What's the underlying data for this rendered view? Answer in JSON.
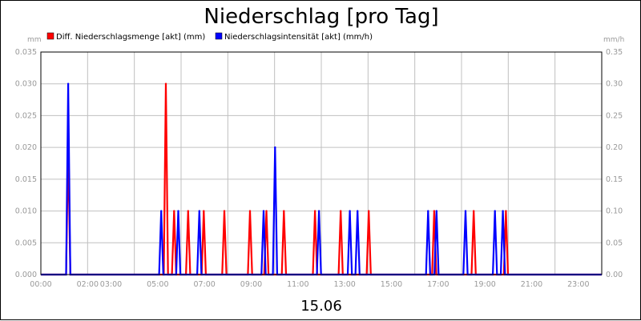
{
  "chart_data": {
    "type": "line",
    "title": "Niederschlag [pro Tag]",
    "xlabel": "15.06",
    "ylabel_left": "mm",
    "ylabel_right": "mm/h",
    "x_unit": "hours",
    "xlim": [
      0,
      24
    ],
    "ylim_left": [
      0,
      0.035
    ],
    "ylim_right": [
      0,
      0.35
    ],
    "yticks_left": [
      "0.000",
      "0.005",
      "0.010",
      "0.015",
      "0.020",
      "0.025",
      "0.030",
      "0.035"
    ],
    "yticks_right": [
      "0.00",
      "0.05",
      "0.10",
      "0.15",
      "0.20",
      "0.25",
      "0.30",
      "0.35"
    ],
    "xticks": [
      {
        "label": "00:00",
        "x": 0
      },
      {
        "label": "02:00",
        "x": 2
      },
      {
        "label": "03:00",
        "x": 3
      },
      {
        "label": "05:00",
        "x": 5
      },
      {
        "label": "07:00",
        "x": 7
      },
      {
        "label": "09:00",
        "x": 9
      },
      {
        "label": "11:00",
        "x": 11
      },
      {
        "label": "13:00",
        "x": 13
      },
      {
        "label": "15:00",
        "x": 15
      },
      {
        "label": "17:00",
        "x": 17
      },
      {
        "label": "19:00",
        "x": 19
      },
      {
        "label": "21:00",
        "x": 21
      },
      {
        "label": "23:00",
        "x": 23
      }
    ],
    "grid": true,
    "legend_position": "top-left",
    "series": [
      {
        "name": "Diff. Niederschlagsmenge [akt] (mm)",
        "color": "#ff0000",
        "axis": "left",
        "peaks": [
          {
            "x": 1.17,
            "y": 0.02
          },
          {
            "x": 5.35,
            "y": 0.03
          },
          {
            "x": 5.7,
            "y": 0.01
          },
          {
            "x": 6.3,
            "y": 0.01
          },
          {
            "x": 6.97,
            "y": 0.01
          },
          {
            "x": 7.85,
            "y": 0.01
          },
          {
            "x": 8.95,
            "y": 0.01
          },
          {
            "x": 9.65,
            "y": 0.01
          },
          {
            "x": 10.4,
            "y": 0.01
          },
          {
            "x": 11.73,
            "y": 0.01
          },
          {
            "x": 12.83,
            "y": 0.01
          },
          {
            "x": 14.03,
            "y": 0.01
          },
          {
            "x": 16.83,
            "y": 0.01
          },
          {
            "x": 18.52,
            "y": 0.01
          },
          {
            "x": 19.9,
            "y": 0.01
          }
        ]
      },
      {
        "name": "Niederschlagsintensität [akt] (mm/h)",
        "color": "#0000ff",
        "axis": "right",
        "peaks": [
          {
            "x": 1.17,
            "y": 0.3
          },
          {
            "x": 5.15,
            "y": 0.1
          },
          {
            "x": 5.88,
            "y": 0.1
          },
          {
            "x": 6.78,
            "y": 0.1
          },
          {
            "x": 9.53,
            "y": 0.1
          },
          {
            "x": 10.02,
            "y": 0.2
          },
          {
            "x": 11.9,
            "y": 0.1
          },
          {
            "x": 13.22,
            "y": 0.1
          },
          {
            "x": 13.55,
            "y": 0.1
          },
          {
            "x": 16.57,
            "y": 0.1
          },
          {
            "x": 16.93,
            "y": 0.1
          },
          {
            "x": 18.17,
            "y": 0.1
          },
          {
            "x": 19.43,
            "y": 0.1
          },
          {
            "x": 19.77,
            "y": 0.1
          }
        ]
      }
    ]
  }
}
